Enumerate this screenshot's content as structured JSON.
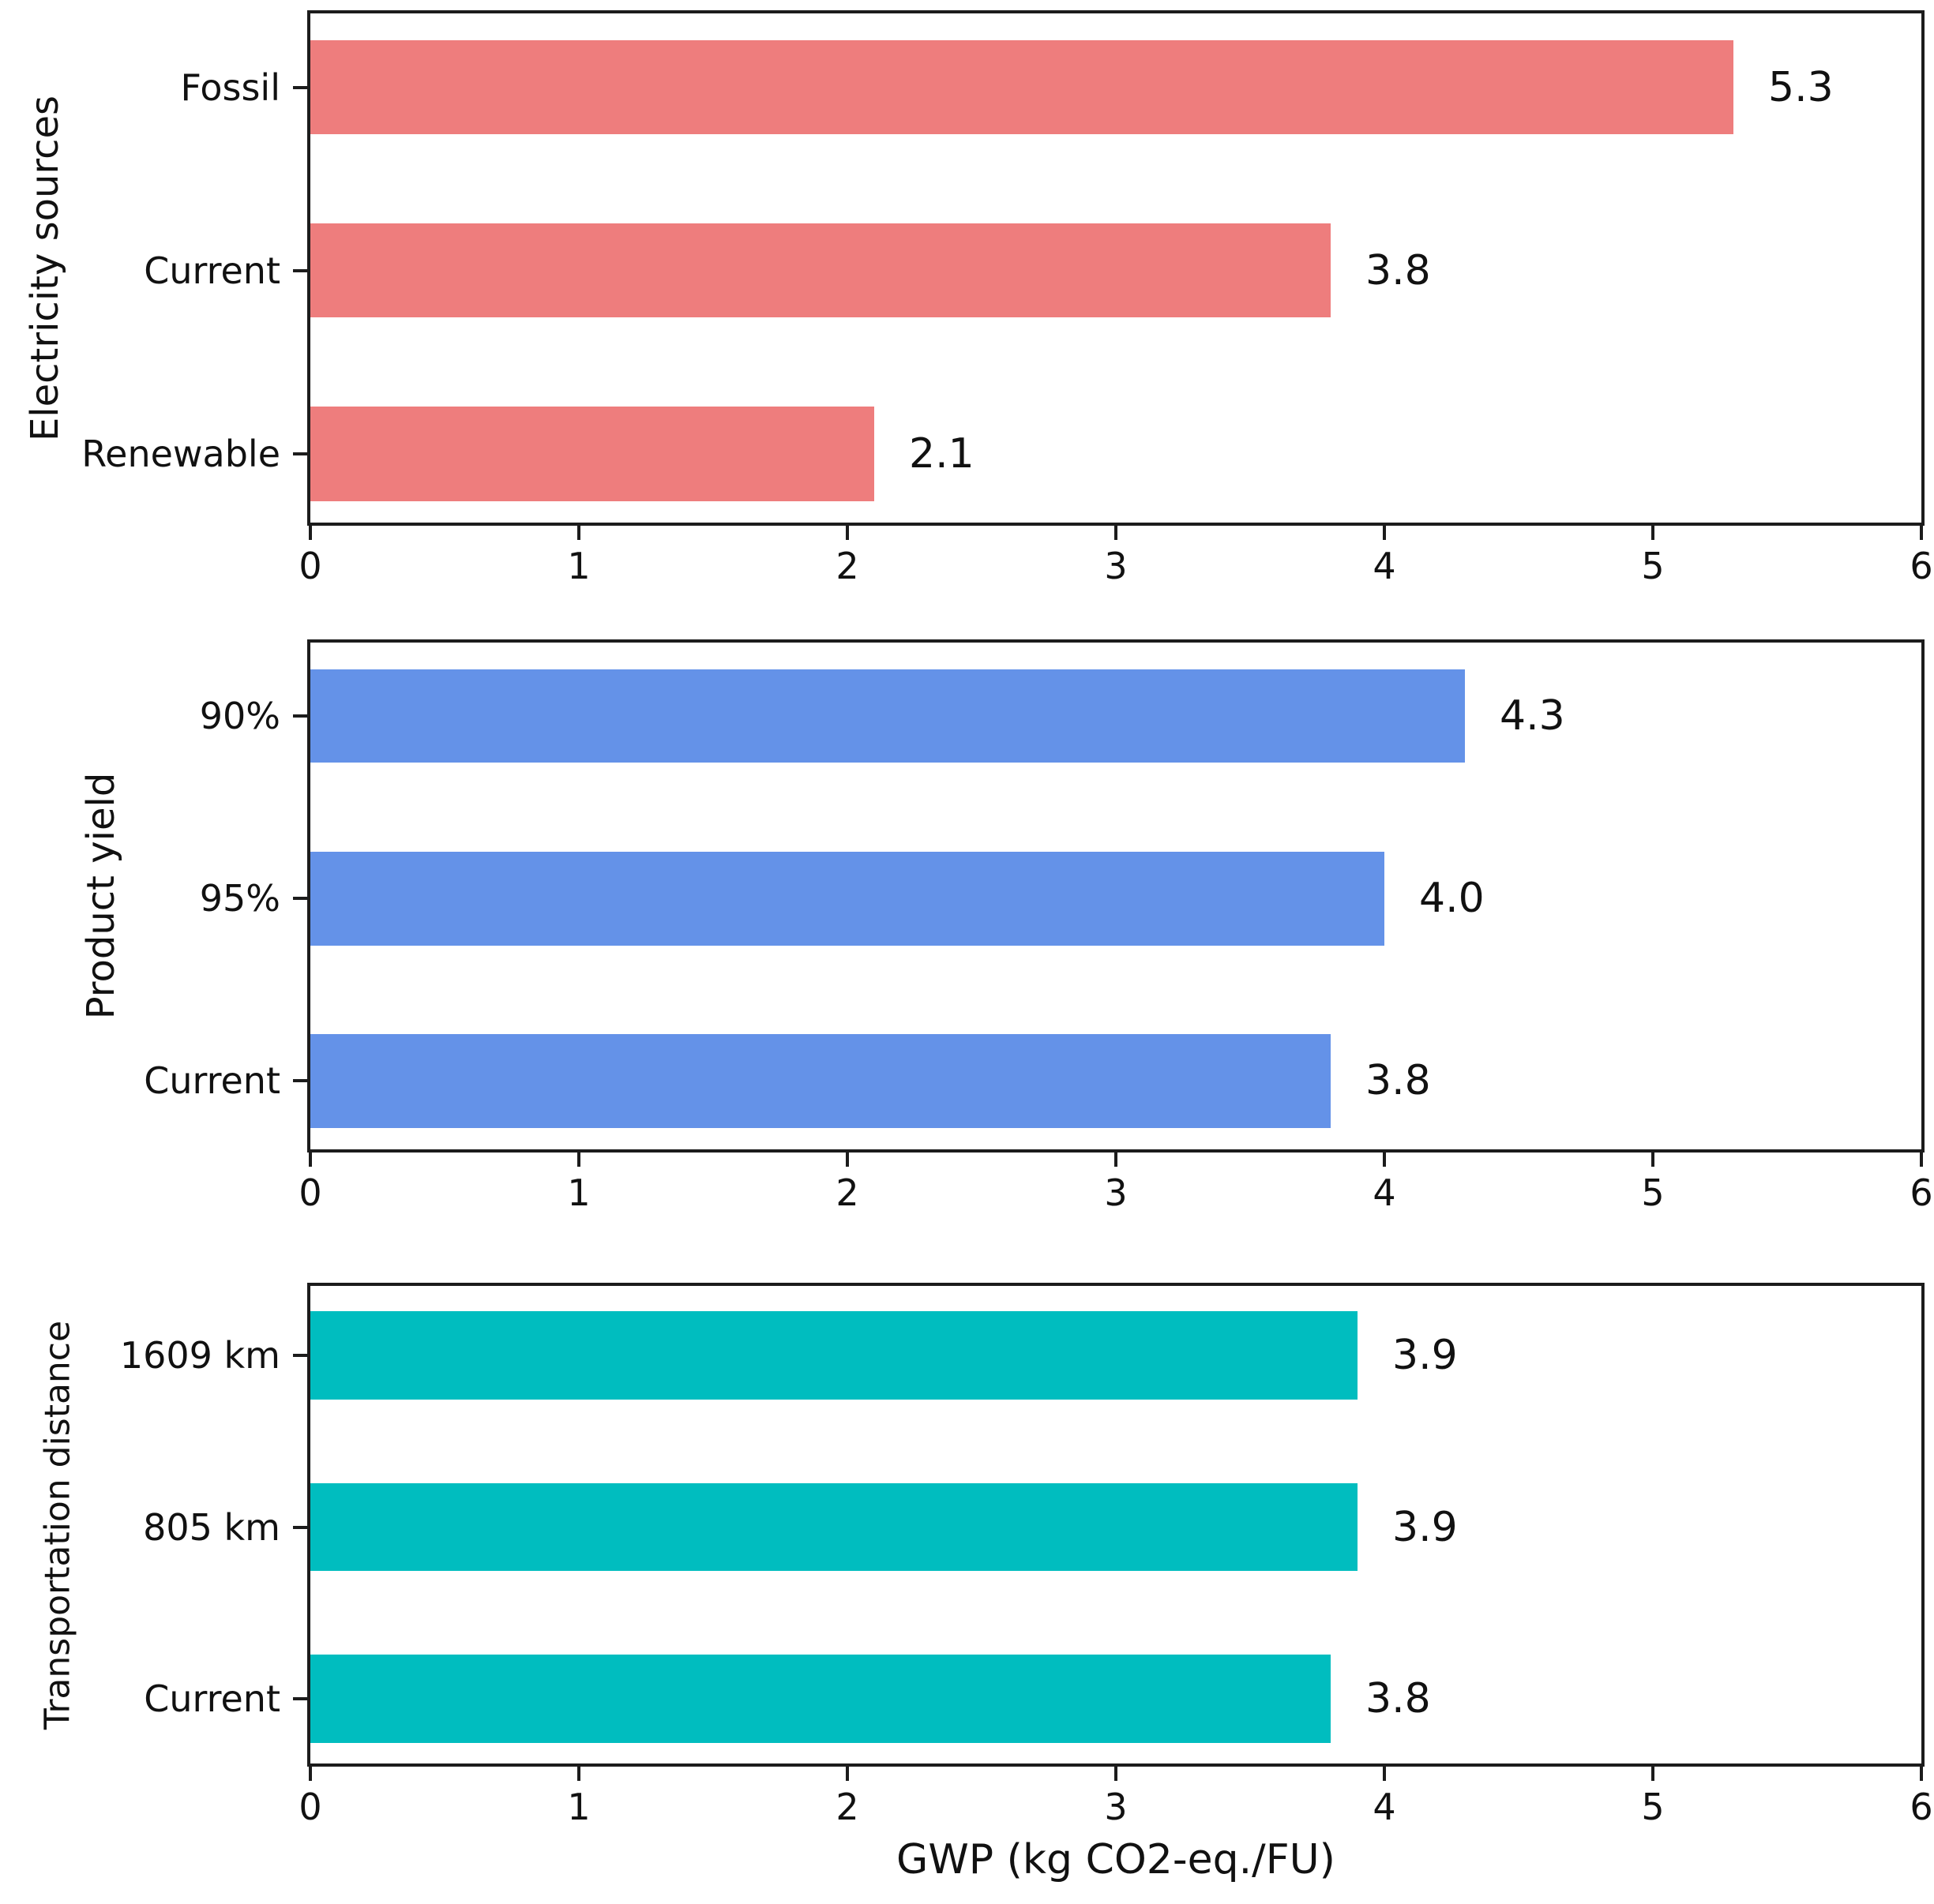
{
  "figure": {
    "xlabel": "GWP (kg CO2-eq./FU)",
    "x_ticks": [
      "0",
      "1",
      "2",
      "3",
      "4",
      "5",
      "6"
    ],
    "x_min": 0,
    "x_max": 6,
    "background_color": "#ffffff",
    "spine_color": "#1c1c1c",
    "text_color": "#111111",
    "grid": false,
    "legend": "none"
  },
  "chart_data": [
    {
      "type": "bar",
      "orientation": "horizontal",
      "ylabel": "Electricity sources",
      "categories": [
        "Fossil",
        "Current",
        "Renewable"
      ],
      "values": [
        5.3,
        3.8,
        2.1
      ],
      "value_labels": [
        "5.3",
        "3.8",
        "2.1"
      ],
      "bar_color": "#ee7d7d",
      "xlim": [
        0,
        6
      ],
      "xticks": [
        0,
        1,
        2,
        3,
        4,
        5,
        6
      ]
    },
    {
      "type": "bar",
      "orientation": "horizontal",
      "ylabel": "Product yield",
      "categories": [
        "90%",
        "95%",
        "Current"
      ],
      "values": [
        4.3,
        4.0,
        3.8
      ],
      "value_labels": [
        "4.3",
        "4.0",
        "3.8"
      ],
      "bar_color": "#6492e8",
      "xlim": [
        0,
        6
      ],
      "xticks": [
        0,
        1,
        2,
        3,
        4,
        5,
        6
      ]
    },
    {
      "type": "bar",
      "orientation": "horizontal",
      "ylabel": "Transportation distance",
      "categories": [
        "1609 km",
        "805 km",
        "Current"
      ],
      "values": [
        3.9,
        3.9,
        3.8
      ],
      "value_labels": [
        "3.9",
        "3.9",
        "3.8"
      ],
      "bar_color": "#00bdbf",
      "xlim": [
        0,
        6
      ],
      "xticks": [
        0,
        1,
        2,
        3,
        4,
        5,
        6
      ]
    }
  ]
}
